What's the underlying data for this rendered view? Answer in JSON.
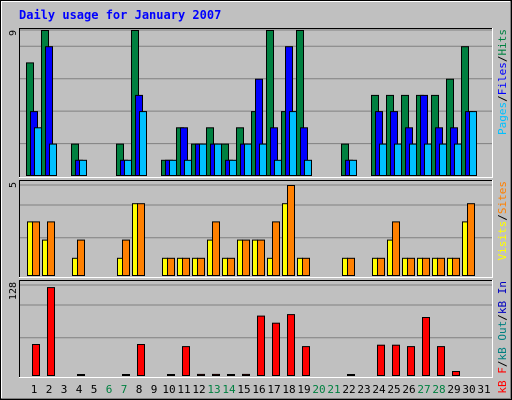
{
  "title": "Daily usage for January 2007",
  "colors": {
    "background": "#C0C0C0",
    "title": "#0000FF",
    "hits": "#008040",
    "files": "#0000FF",
    "pages": "#00C0FF",
    "visits": "#FFFF00",
    "sites": "#FF8000",
    "kbin": "#0000C0",
    "kbout": "#008080",
    "kbf": "#FF0000",
    "weekday_label": "#000000",
    "weekend_label": "#008040"
  },
  "chart_data": [
    {
      "type": "bar",
      "panel": "hits",
      "ymax_label": "9",
      "ylim": [
        0,
        9
      ],
      "legend": [
        {
          "text": "Pages",
          "color_key": "pages"
        },
        {
          "text": "/",
          "color_key": "weekday_label"
        },
        {
          "text": "Files",
          "color_key": "files"
        },
        {
          "text": "/",
          "color_key": "weekday_label"
        },
        {
          "text": "Hits",
          "color_key": "hits"
        }
      ],
      "categories": [
        "1",
        "2",
        "3",
        "4",
        "5",
        "6",
        "7",
        "8",
        "9",
        "10",
        "11",
        "12",
        "13",
        "14",
        "15",
        "16",
        "17",
        "18",
        "19",
        "20",
        "21",
        "22",
        "23",
        "24",
        "25",
        "26",
        "27",
        "28",
        "29",
        "30",
        "31"
      ],
      "series": [
        {
          "name": "Hits",
          "color_key": "hits",
          "values": [
            7,
            9,
            0,
            2,
            0,
            0,
            2,
            9,
            0,
            1,
            3,
            2,
            3,
            2,
            3,
            4,
            9,
            4,
            9,
            0,
            0,
            2,
            0,
            5,
            5,
            5,
            5,
            5,
            6,
            8,
            0
          ]
        },
        {
          "name": "Files",
          "color_key": "files",
          "values": [
            4,
            8,
            0,
            1,
            0,
            0,
            1,
            5,
            0,
            1,
            3,
            2,
            2,
            1,
            2,
            6,
            3,
            8,
            3,
            0,
            0,
            1,
            0,
            4,
            4,
            3,
            5,
            3,
            3,
            4,
            0
          ]
        },
        {
          "name": "Pages",
          "color_key": "pages",
          "values": [
            3,
            2,
            0,
            1,
            0,
            0,
            1,
            4,
            0,
            1,
            1,
            2,
            2,
            1,
            2,
            2,
            1,
            4,
            1,
            0,
            0,
            1,
            0,
            2,
            2,
            2,
            2,
            2,
            2,
            4,
            0
          ]
        }
      ]
    },
    {
      "type": "bar",
      "panel": "visits",
      "ymax_label": "5",
      "ylim": [
        0,
        5
      ],
      "legend": [
        {
          "text": "Visits",
          "color_key": "visits"
        },
        {
          "text": "/",
          "color_key": "weekday_label"
        },
        {
          "text": "Sites",
          "color_key": "sites"
        }
      ],
      "categories": [
        "1",
        "2",
        "3",
        "4",
        "5",
        "6",
        "7",
        "8",
        "9",
        "10",
        "11",
        "12",
        "13",
        "14",
        "15",
        "16",
        "17",
        "18",
        "19",
        "20",
        "21",
        "22",
        "23",
        "24",
        "25",
        "26",
        "27",
        "28",
        "29",
        "30",
        "31"
      ],
      "series": [
        {
          "name": "Visits",
          "color_key": "visits",
          "values": [
            3,
            2,
            0,
            1,
            0,
            0,
            1,
            4,
            0,
            1,
            1,
            1,
            2,
            1,
            2,
            2,
            1,
            4,
            1,
            0,
            0,
            1,
            0,
            1,
            2,
            1,
            1,
            1,
            1,
            3,
            0
          ]
        },
        {
          "name": "Sites",
          "color_key": "sites",
          "values": [
            3,
            3,
            0,
            2,
            0,
            0,
            2,
            4,
            0,
            1,
            1,
            1,
            3,
            1,
            2,
            2,
            3,
            5,
            1,
            0,
            0,
            1,
            0,
            1,
            3,
            1,
            1,
            1,
            1,
            4,
            0
          ]
        }
      ]
    },
    {
      "type": "bar",
      "panel": "kbytes",
      "ymax_label": "128",
      "ylim": [
        0,
        128
      ],
      "legend": [
        {
          "text": "kB F",
          "color_key": "kbf"
        },
        {
          "text": "/",
          "color_key": "weekday_label"
        },
        {
          "text": "kB Out",
          "color_key": "kbout"
        },
        {
          "text": "/",
          "color_key": "weekday_label"
        },
        {
          "text": "kB In",
          "color_key": "kbin"
        }
      ],
      "categories": [
        "1",
        "2",
        "3",
        "4",
        "5",
        "6",
        "7",
        "8",
        "9",
        "10",
        "11",
        "12",
        "13",
        "14",
        "15",
        "16",
        "17",
        "18",
        "19",
        "20",
        "21",
        "22",
        "23",
        "24",
        "25",
        "26",
        "27",
        "28",
        "29",
        "30",
        "31"
      ],
      "series": [
        {
          "name": "kB F",
          "color_key": "kbf",
          "values": [
            45,
            125,
            0,
            2,
            0,
            0,
            2,
            45,
            0,
            2,
            42,
            3,
            3,
            2,
            3,
            85,
            75,
            87,
            42,
            0,
            0,
            2,
            0,
            44,
            44,
            42,
            83,
            42,
            7,
            0,
            0
          ]
        }
      ]
    }
  ],
  "x_axis": {
    "labels": [
      "1",
      "2",
      "3",
      "4",
      "5",
      "6",
      "7",
      "8",
      "9",
      "10",
      "11",
      "12",
      "13",
      "14",
      "15",
      "16",
      "17",
      "18",
      "19",
      "20",
      "21",
      "22",
      "23",
      "24",
      "25",
      "26",
      "27",
      "28",
      "29",
      "30",
      "31"
    ],
    "weekend": [
      6,
      7,
      13,
      14,
      20,
      21,
      27,
      28
    ]
  }
}
